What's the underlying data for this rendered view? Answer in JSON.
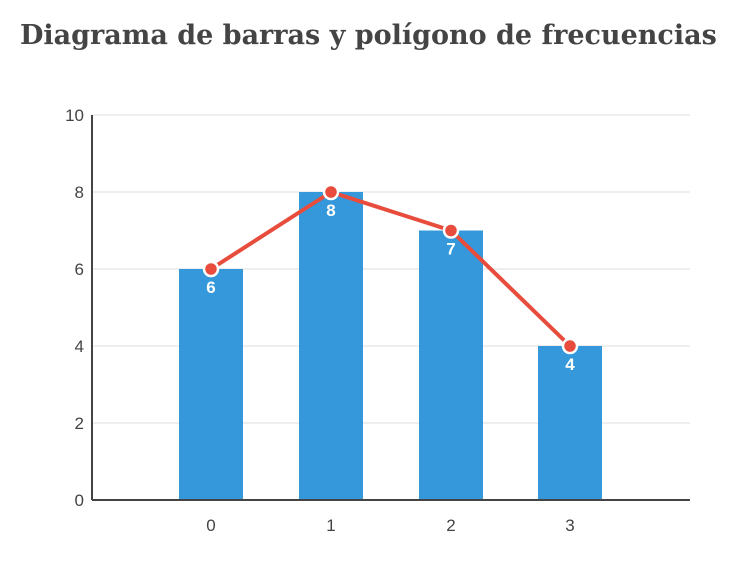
{
  "chart_data": {
    "type": "bar",
    "title": "Diagrama de barras y polígono de frecuencias",
    "categories": [
      "0",
      "1",
      "2",
      "3"
    ],
    "values": [
      6,
      8,
      7,
      4
    ],
    "ylim": [
      0,
      10
    ],
    "yticks": [
      "0",
      "2",
      "4",
      "6",
      "8",
      "10"
    ],
    "grid": true,
    "overlay_line": true,
    "bar_color": "#3498db",
    "line_color": "#e74c3c",
    "data_labels": [
      "6",
      "8",
      "7",
      "4"
    ]
  }
}
